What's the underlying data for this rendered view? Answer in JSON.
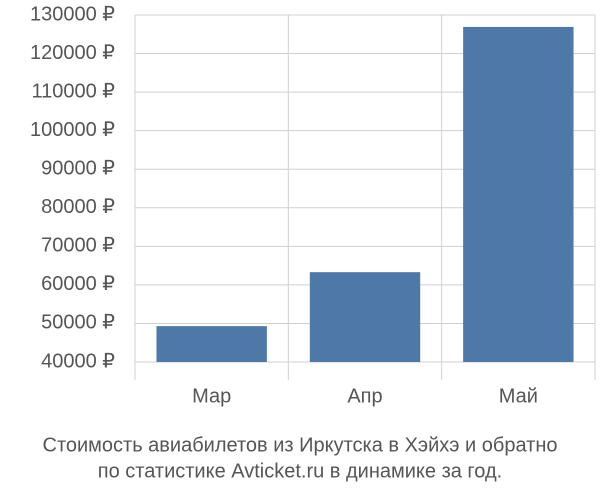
{
  "chart_data": {
    "type": "bar",
    "title": [
      "Стоимость авиабилетов из Иркутска в Хэйхэ и обратно",
      "по статистике Avticket.ru в динамике за год."
    ],
    "categories": [
      "Мар",
      "Апр",
      "Май"
    ],
    "values": [
      49300,
      63300,
      126900
    ],
    "color": "#4d78a8",
    "ylim": [
      40000,
      130000
    ],
    "yticks": [
      {
        "value": 40000,
        "label": "40000 ₽"
      },
      {
        "value": 50000,
        "label": "50000 ₽"
      },
      {
        "value": 60000,
        "label": "60000 ₽"
      },
      {
        "value": 70000,
        "label": "70000 ₽"
      },
      {
        "value": 80000,
        "label": "80000 ₽"
      },
      {
        "value": 90000,
        "label": "90000 ₽"
      },
      {
        "value": 100000,
        "label": "100000 ₽"
      },
      {
        "value": 110000,
        "label": "110000 ₽"
      },
      {
        "value": 120000,
        "label": "120000 ₽"
      },
      {
        "value": 130000,
        "label": "130000 ₽"
      }
    ],
    "grid": true
  }
}
